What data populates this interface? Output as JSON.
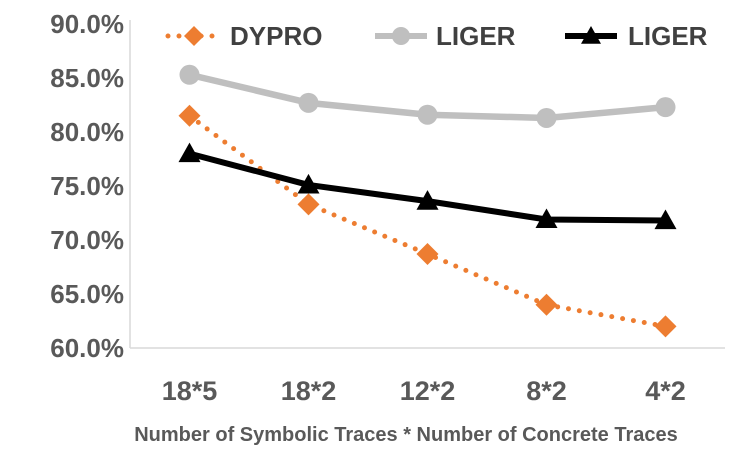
{
  "chart_data": {
    "type": "line",
    "title": "",
    "xlabel": "Number of Symbolic Traces * Number of Concrete Traces",
    "ylabel": "",
    "categories": [
      "18*5",
      "18*2",
      "12*2",
      "8*2",
      "4*2"
    ],
    "ylim": [
      60.0,
      90.0
    ],
    "yticks": [
      "60.0%",
      "65.0%",
      "70.0%",
      "75.0%",
      "80.0%",
      "85.0%",
      "90.0%"
    ],
    "ytick_values": [
      60,
      65,
      70,
      75,
      80,
      85,
      90
    ],
    "grid": false,
    "legend_position": "top",
    "series": [
      {
        "name": "DYPRO",
        "values": [
          81.5,
          73.3,
          68.7,
          64.0,
          62.0
        ],
        "color": "#ED7D31",
        "line_style": "dotted",
        "marker": "diamond"
      },
      {
        "name": "LIGER",
        "values": [
          85.3,
          82.7,
          81.6,
          81.3,
          82.3
        ],
        "color": "#BFBFBF",
        "line_style": "solid",
        "marker": "circle"
      },
      {
        "name": "LIGER",
        "values": [
          78.0,
          75.1,
          73.6,
          71.9,
          71.8
        ],
        "color": "#000000",
        "line_style": "solid",
        "marker": "triangle"
      }
    ]
  }
}
